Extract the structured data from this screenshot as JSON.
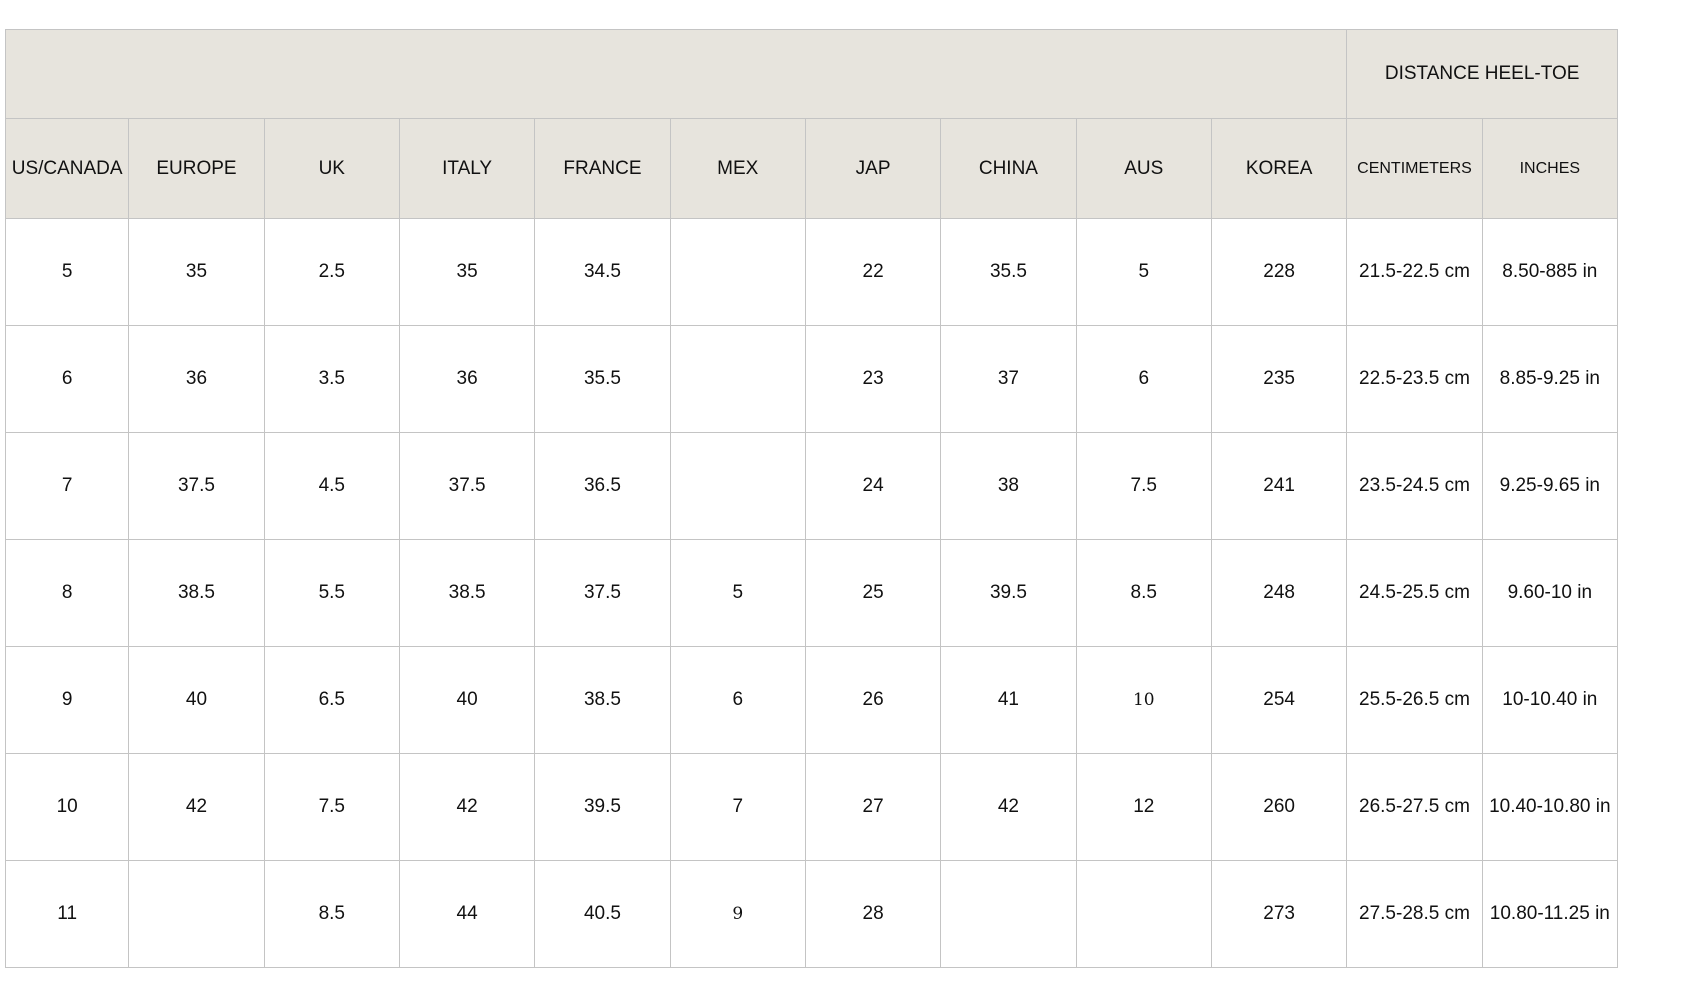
{
  "table": {
    "group_header": "DISTANCE HEEL-TOE",
    "columns": [
      "US/CANADA",
      "EUROPE",
      "UK",
      "ITALY",
      "FRANCE",
      "MEX",
      "JAP",
      "CHINA",
      "AUS",
      "KOREA",
      "CENTIMETERS",
      "INCHES"
    ],
    "rows": [
      [
        "5",
        "35",
        "2.5",
        "35",
        "34.5",
        "",
        "22",
        "35.5",
        "5",
        "228",
        "21.5-22.5 cm",
        "8.50-885 in"
      ],
      [
        "6",
        "36",
        "3.5",
        "36",
        "35.5",
        "",
        "23",
        "37",
        "6",
        "235",
        "22.5-23.5 cm",
        "8.85-9.25 in"
      ],
      [
        "7",
        "37.5",
        "4.5",
        "37.5",
        "36.5",
        "",
        "24",
        "38",
        "7.5",
        "241",
        "23.5-24.5 cm",
        "9.25-9.65 in"
      ],
      [
        "8",
        "38.5",
        "5.5",
        "38.5",
        "37.5",
        "5",
        "25",
        "39.5",
        "8.5",
        "248",
        "24.5-25.5 cm",
        "9.60-10 in"
      ],
      [
        "9",
        "40",
        "6.5",
        "40",
        "38.5",
        "6",
        "26",
        "41",
        "10",
        "254",
        "25.5-26.5 cm",
        "10-10.40 in"
      ],
      [
        "10",
        "42",
        "7.5",
        "42",
        "39.5",
        "7",
        "27",
        "42",
        "12",
        "260",
        "26.5-27.5 cm",
        "10.40-10.80 in"
      ],
      [
        "11",
        "",
        "8.5",
        "44",
        "40.5",
        "9",
        "28",
        "",
        "",
        "273",
        "27.5-28.5 cm",
        "10.80-11.25 in"
      ]
    ]
  }
}
